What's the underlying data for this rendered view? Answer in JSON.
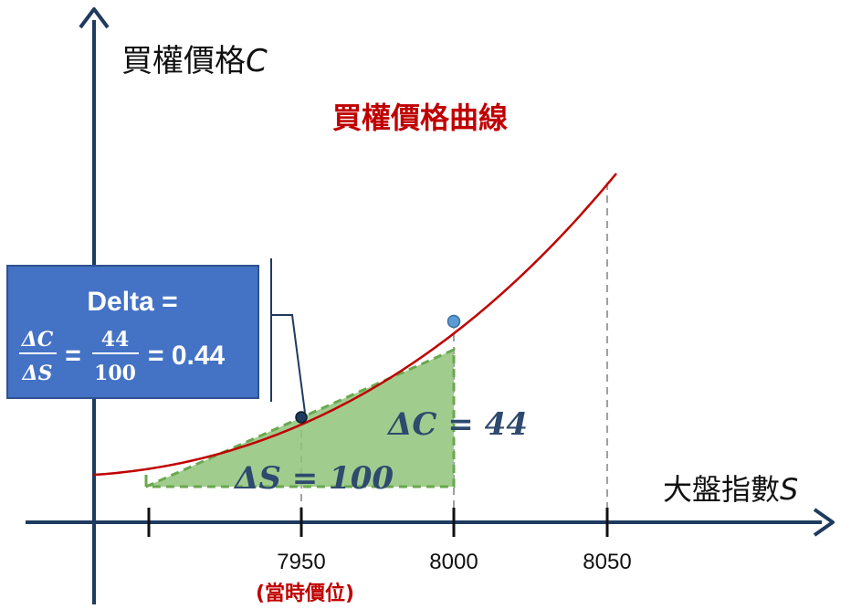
{
  "y_axis_label": "買權價格",
  "y_axis_var": "C",
  "x_axis_label": "大盤指數",
  "x_axis_var": "S",
  "curve_title": "買權價格曲線",
  "tick_labels": [
    "7950",
    "8000",
    "8050"
  ],
  "current_price_label": "(當時價位)",
  "delta_s_label": "ΔS = 100",
  "delta_c_label": "ΔC = 44",
  "delta_box": {
    "title": "Delta =",
    "num_symbol": "ΔC",
    "den_symbol": "ΔS",
    "eq1": "=",
    "num_value": "44",
    "den_value": "100",
    "eq2": "= 0.44"
  },
  "colors": {
    "axis": "#1f3a5f",
    "curve": "#c00000",
    "triangle_fill": "#8fc47a",
    "triangle_stroke": "#6aa84f",
    "box_fill": "#4472c4",
    "delta_text": "#2e4a6e",
    "point_dark": "#1f3a5f",
    "point_light": "#5b9bd5"
  },
  "chart_data": {
    "type": "line",
    "xlabel": "大盤指數S",
    "ylabel": "買權價格C",
    "x_ticks": [
      7950,
      8000,
      8050
    ],
    "points": [
      {
        "x": 7950,
        "label": "當時價位"
      },
      {
        "x": 8000
      }
    ],
    "delta_S": 100,
    "delta_C": 44,
    "delta": 0.44
  }
}
